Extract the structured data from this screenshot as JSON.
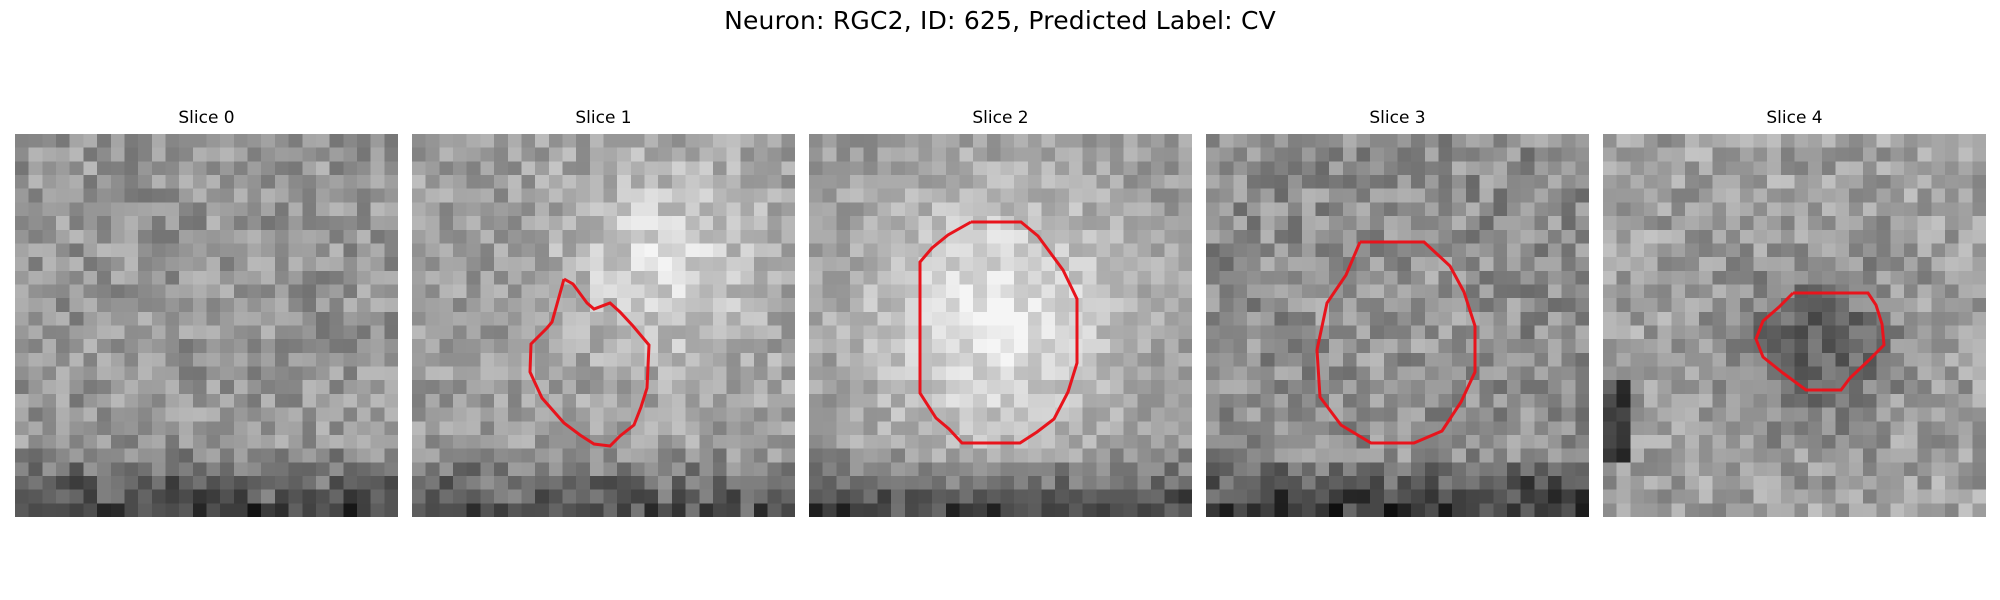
{
  "figure": {
    "title": "Neuron: RGC2, ID: 625, Predicted Label: CV"
  },
  "panels": [
    {
      "label": "Slice 0",
      "has_contour": false
    },
    {
      "label": "Slice 1",
      "has_contour": true
    },
    {
      "label": "Slice 2",
      "has_contour": true
    },
    {
      "label": "Slice 3",
      "has_contour": true
    },
    {
      "label": "Slice 4",
      "has_contour": true
    }
  ],
  "colors": {
    "contour": "#e8141c",
    "colormap": "grayscale"
  }
}
